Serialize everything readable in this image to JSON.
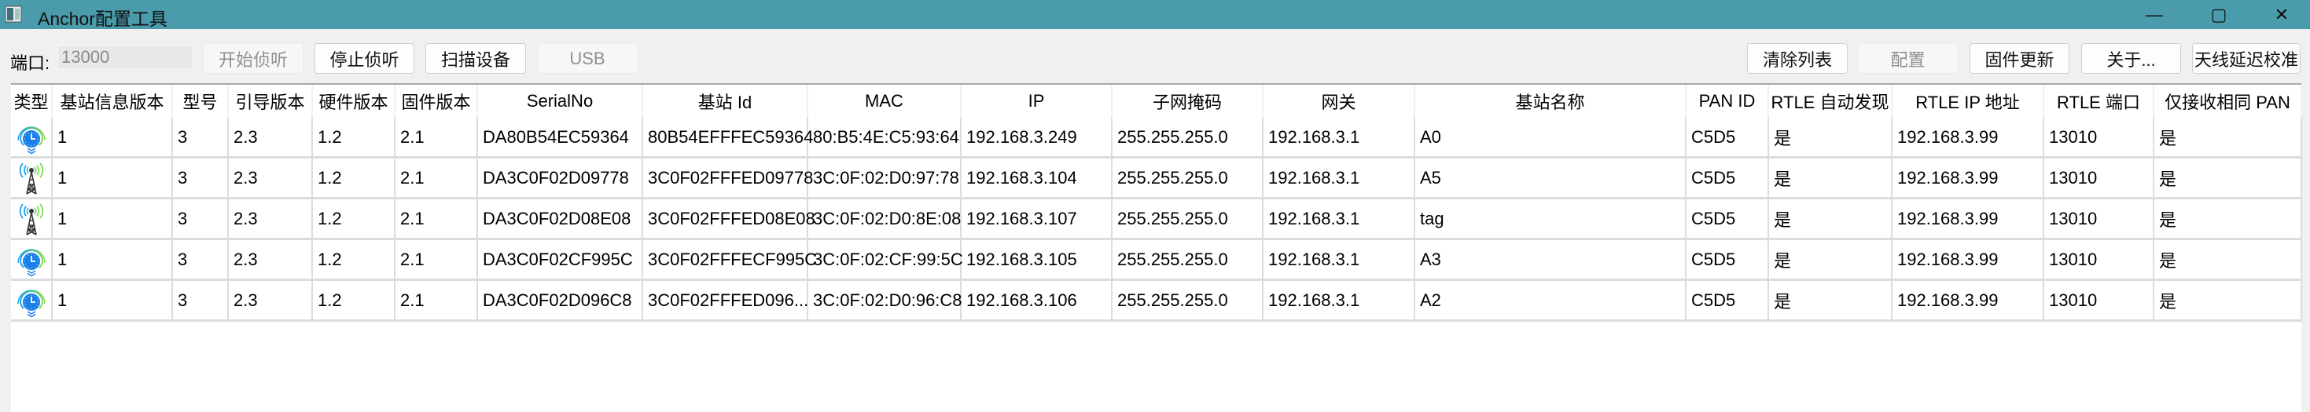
{
  "window": {
    "title": "Anchor配置工具",
    "controls": {
      "minimize": "—",
      "maximize": "▢",
      "close": "✕"
    },
    "accent_color": "#4a9bab"
  },
  "toolbar": {
    "port_label": "端口:",
    "port_value": "13000",
    "start_listen": "开始侦听",
    "stop_listen": "停止侦听",
    "scan_devices": "扫描设备",
    "usb": "USB",
    "clear_list": "清除列表",
    "configure": "配置",
    "firmware_update": "固件更新",
    "about": "关于...",
    "antenna_delay": "天线延迟校准"
  },
  "table": {
    "columns": [
      "类型",
      "基站信息版本",
      "型号",
      "引导版本",
      "硬件版本",
      "固件版本",
      "SerialNo",
      "基站 Id",
      "MAC",
      "IP",
      "子网掩码",
      "网关",
      "基站名称",
      "PAN ID",
      "RTLE 自动发现",
      "RTLE IP 地址",
      "RTLE 端口",
      "仅接收相同 PAN"
    ],
    "rows": [
      {
        "type_icon": "anchor-clock-icon",
        "cells": [
          "1",
          "3",
          "2.3",
          "1.2",
          "2.1",
          "DA80B54EC59364",
          "80B54EFFFEC59364",
          "80:B5:4E:C5:93:64",
          "192.168.3.249",
          "255.255.255.0",
          "192.168.3.1",
          "A0",
          "C5D5",
          "是",
          "192.168.3.99",
          "13010",
          "是"
        ]
      },
      {
        "type_icon": "tower-icon",
        "cells": [
          "1",
          "3",
          "2.3",
          "1.2",
          "2.1",
          "DA3C0F02D09778",
          "3C0F02FFFED09778",
          "3C:0F:02:D0:97:78",
          "192.168.3.104",
          "255.255.255.0",
          "192.168.3.1",
          "A5",
          "C5D5",
          "是",
          "192.168.3.99",
          "13010",
          "是"
        ]
      },
      {
        "type_icon": "tower-icon",
        "cells": [
          "1",
          "3",
          "2.3",
          "1.2",
          "2.1",
          "DA3C0F02D08E08",
          "3C0F02FFFED08E08",
          "3C:0F:02:D0:8E:08",
          "192.168.3.107",
          "255.255.255.0",
          "192.168.3.1",
          "tag",
          "C5D5",
          "是",
          "192.168.3.99",
          "13010",
          "是"
        ]
      },
      {
        "type_icon": "anchor-clock-icon",
        "cells": [
          "1",
          "3",
          "2.3",
          "1.2",
          "2.1",
          "DA3C0F02CF995C",
          "3C0F02FFFECF995C",
          "3C:0F:02:CF:99:5C",
          "192.168.3.105",
          "255.255.255.0",
          "192.168.3.1",
          "A3",
          "C5D5",
          "是",
          "192.168.3.99",
          "13010",
          "是"
        ]
      },
      {
        "type_icon": "anchor-clock-icon",
        "cells": [
          "1",
          "3",
          "2.3",
          "1.2",
          "2.1",
          "DA3C0F02D096C8",
          "3C0F02FFFED096...",
          "3C:0F:02:D0:96:C8",
          "192.168.3.106",
          "255.255.255.0",
          "192.168.3.1",
          "A2",
          "C5D5",
          "是",
          "192.168.3.99",
          "13010",
          "是"
        ]
      }
    ]
  }
}
